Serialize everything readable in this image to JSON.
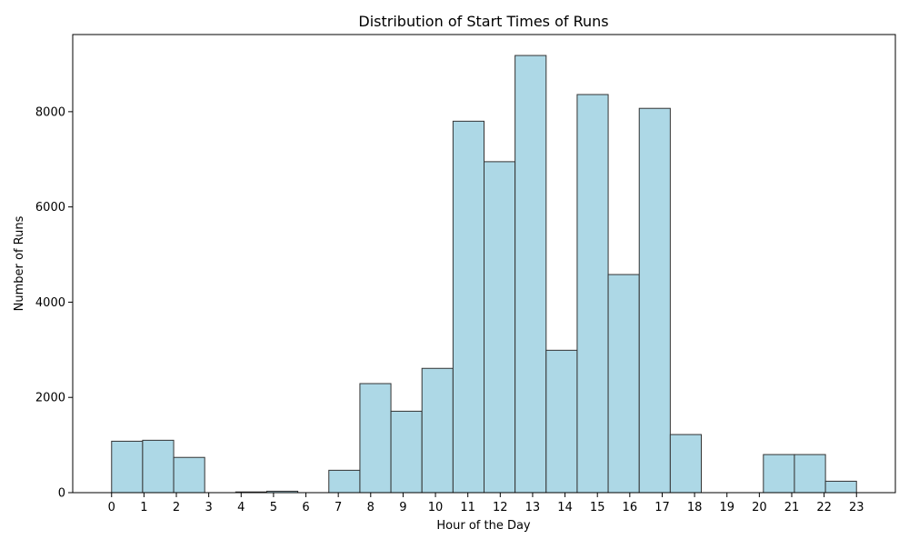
{
  "chart_data": {
    "type": "bar",
    "title": "Distribution of Start Times of Runs",
    "xlabel": "Hour of the Day",
    "ylabel": "Number of Runs",
    "x_ticks": [
      "0",
      "1",
      "2",
      "3",
      "4",
      "5",
      "6",
      "7",
      "8",
      "9",
      "10",
      "11",
      "12",
      "13",
      "14",
      "15",
      "16",
      "17",
      "18",
      "19",
      "20",
      "21",
      "22",
      "23"
    ],
    "y_ticks": [
      0,
      2000,
      4000,
      6000,
      8000
    ],
    "xlim": [
      -1.2,
      24.2
    ],
    "ylim": [
      0,
      9620
    ],
    "bins": [
      {
        "start": 0.0,
        "end": 0.958,
        "value": 1080
      },
      {
        "start": 0.958,
        "end": 1.917,
        "value": 1100
      },
      {
        "start": 1.917,
        "end": 2.875,
        "value": 740
      },
      {
        "start": 2.875,
        "end": 3.833,
        "value": 0
      },
      {
        "start": 3.833,
        "end": 4.792,
        "value": 15
      },
      {
        "start": 4.792,
        "end": 5.75,
        "value": 30
      },
      {
        "start": 5.75,
        "end": 6.708,
        "value": 0
      },
      {
        "start": 6.708,
        "end": 7.667,
        "value": 470
      },
      {
        "start": 7.667,
        "end": 8.625,
        "value": 2290
      },
      {
        "start": 8.625,
        "end": 9.583,
        "value": 1710
      },
      {
        "start": 9.583,
        "end": 10.542,
        "value": 2610
      },
      {
        "start": 10.542,
        "end": 11.5,
        "value": 7800
      },
      {
        "start": 11.5,
        "end": 12.458,
        "value": 6950
      },
      {
        "start": 12.458,
        "end": 13.417,
        "value": 9180
      },
      {
        "start": 13.417,
        "end": 14.375,
        "value": 2990
      },
      {
        "start": 14.375,
        "end": 15.333,
        "value": 8360
      },
      {
        "start": 15.333,
        "end": 16.292,
        "value": 4580
      },
      {
        "start": 16.292,
        "end": 17.25,
        "value": 8070
      },
      {
        "start": 17.25,
        "end": 18.208,
        "value": 1220
      },
      {
        "start": 18.208,
        "end": 19.167,
        "value": 0
      },
      {
        "start": 19.167,
        "end": 20.125,
        "value": 0
      },
      {
        "start": 20.125,
        "end": 21.083,
        "value": 800
      },
      {
        "start": 21.083,
        "end": 22.042,
        "value": 800
      },
      {
        "start": 22.042,
        "end": 23.0,
        "value": 240
      }
    ],
    "bar_color": "#add8e6",
    "edge_color": "#333333",
    "grid": false,
    "legend": "none"
  }
}
